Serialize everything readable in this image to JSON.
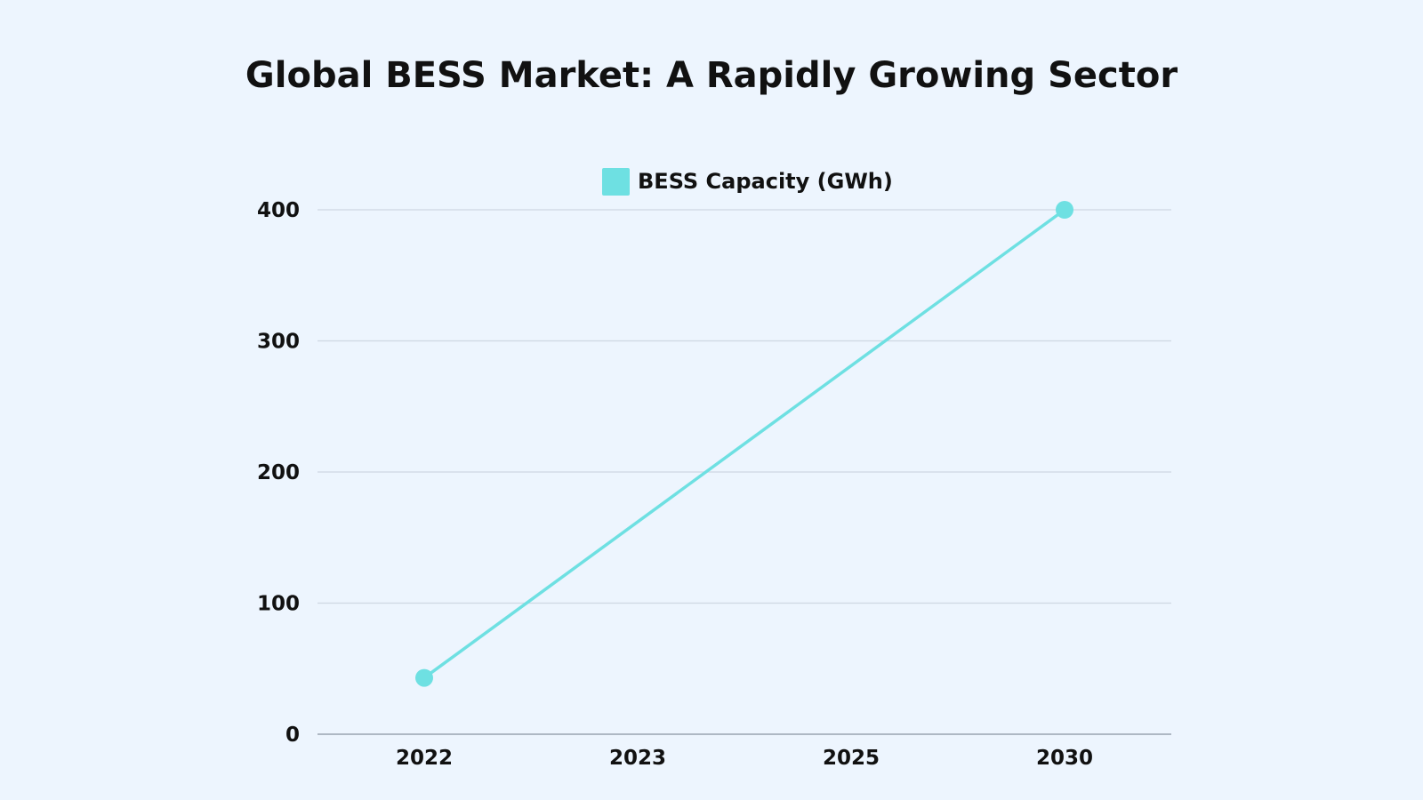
{
  "chart_data": {
    "type": "line",
    "title": "Global BESS Market: A Rapidly Growing Sector",
    "xlabel": "",
    "ylabel": "",
    "categories": [
      "2022",
      "2023",
      "2025",
      "2030"
    ],
    "series": [
      {
        "name": "BESS Capacity (GWh)",
        "points": [
          {
            "category": "2022",
            "value": 43
          },
          {
            "category": "2030",
            "value": 400
          }
        ]
      }
    ],
    "ylim": [
      0,
      400
    ],
    "yticks": [
      0,
      100,
      200,
      300,
      400
    ],
    "grid": true,
    "legend_position": "top-center"
  },
  "colors": {
    "background": "#edf5fe",
    "series": "#6ee0e2",
    "gridline": "#cfd8e3",
    "axis": "#9aa4b0"
  }
}
